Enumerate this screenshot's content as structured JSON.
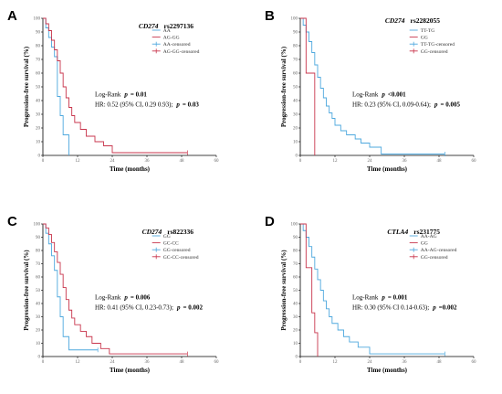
{
  "colors": {
    "group_a": "#4ea8de",
    "group_b": "#c8354c",
    "axis": "#000000",
    "tick_label": "#666666"
  },
  "chart_data": [
    {
      "type": "line",
      "panel": "A",
      "gene": "CD274",
      "snp": "rs2297136",
      "xlabel": "Time (months)",
      "ylabel": "Progression-free survival (%)",
      "xlim": [
        0,
        60
      ],
      "ylim": [
        0,
        100
      ],
      "xticks": [
        0,
        12,
        24,
        36,
        48,
        60
      ],
      "yticks": [
        0,
        10,
        20,
        30,
        40,
        50,
        60,
        70,
        80,
        90,
        100
      ],
      "grid": false,
      "legend": "top-right",
      "legend_entries": [
        "AA",
        "AG-GG",
        "AA-censored",
        "AG-GG-censored"
      ],
      "stats": {
        "logrank_label": "Log-Rank",
        "p_label": "p",
        "logrank_p": "= 0.01",
        "hr_text": "HR: 0.52 (95% CI, 0.29 0.93);",
        "hr_p": "= 0.03"
      },
      "series": [
        {
          "name": "AA",
          "color": "group_a",
          "x": [
            0,
            1,
            2,
            3,
            4,
            5,
            6,
            7,
            9
          ],
          "y": [
            100,
            93,
            86,
            79,
            72,
            43,
            29,
            15,
            0
          ],
          "censored": []
        },
        {
          "name": "AG-GG",
          "color": "group_b",
          "x": [
            0,
            1,
            2,
            3,
            4,
            5,
            6,
            7,
            8,
            9,
            10,
            11,
            13,
            15,
            18,
            21,
            24,
            50
          ],
          "y": [
            100,
            96,
            91,
            84,
            77,
            69,
            60,
            50,
            42,
            35,
            29,
            24,
            19,
            14,
            10,
            7,
            2,
            2
          ],
          "censored": [
            [
              50,
              2
            ]
          ]
        }
      ]
    },
    {
      "type": "line",
      "panel": "B",
      "gene": "CD274",
      "snp": "rs2282055",
      "xlabel": "Time (months)",
      "ylabel": "Progression-free survival (%)",
      "xlim": [
        0,
        60
      ],
      "ylim": [
        0,
        100
      ],
      "xticks": [
        0,
        12,
        24,
        36,
        48,
        60
      ],
      "yticks": [
        0,
        10,
        20,
        30,
        40,
        50,
        60,
        70,
        80,
        90,
        100
      ],
      "grid": false,
      "legend": "top-right",
      "legend_entries": [
        "TT-TG",
        "GG",
        "TT-TG-censored",
        "GG-censored"
      ],
      "stats": {
        "logrank_label": "Log-Rank",
        "p_label": "p",
        "logrank_p": "<0.001",
        "hr_text": "HR: 0.23 (95% CI, 0.09-0.64);",
        "hr_p": "= 0.005"
      },
      "series": [
        {
          "name": "TT-TG",
          "color": "group_a",
          "x": [
            0,
            1,
            2,
            3,
            4,
            5,
            6,
            7,
            8,
            9,
            10,
            11,
            12,
            14,
            16,
            19,
            21,
            24,
            28,
            50
          ],
          "y": [
            100,
            95,
            90,
            83,
            75,
            66,
            57,
            49,
            42,
            36,
            31,
            27,
            22,
            18,
            15,
            12,
            9,
            6,
            1,
            1
          ],
          "censored": [
            [
              50,
              1
            ]
          ]
        },
        {
          "name": "GG",
          "color": "group_b",
          "x": [
            0,
            2,
            5,
            5
          ],
          "y": [
            100,
            60,
            20,
            0
          ],
          "censored": []
        }
      ]
    },
    {
      "type": "line",
      "panel": "C",
      "gene": "CD274",
      "snp": "rs822336",
      "xlabel": "Time (months)",
      "ylabel": "Progression-free survival (%)",
      "xlim": [
        0,
        60
      ],
      "ylim": [
        0,
        100
      ],
      "xticks": [
        0,
        12,
        24,
        36,
        48,
        60
      ],
      "yticks": [
        0,
        10,
        20,
        30,
        40,
        50,
        60,
        70,
        80,
        90,
        100
      ],
      "grid": false,
      "legend": "top-right",
      "legend_entries": [
        "GG",
        "GC-CC",
        "GG-censored",
        "GC-CC-censored"
      ],
      "stats": {
        "logrank_label": "Log-Rank",
        "p_label": "p",
        "logrank_p": "= 0.006",
        "hr_text": "HR: 0.41 (95% CI, 0.23-0.73);",
        "hr_p": "= 0.002"
      },
      "series": [
        {
          "name": "GG",
          "color": "group_a",
          "x": [
            0,
            1,
            2,
            3,
            4,
            5,
            6,
            7,
            9,
            19
          ],
          "y": [
            100,
            93,
            85,
            76,
            65,
            45,
            30,
            15,
            5,
            5
          ],
          "censored": [
            [
              19,
              5
            ]
          ]
        },
        {
          "name": "GC-CC",
          "color": "group_b",
          "x": [
            0,
            1,
            2,
            3,
            4,
            5,
            6,
            7,
            8,
            9,
            10,
            11,
            13,
            15,
            17,
            20,
            23,
            50
          ],
          "y": [
            100,
            97,
            92,
            86,
            79,
            71,
            62,
            52,
            43,
            35,
            29,
            24,
            19,
            15,
            10,
            6,
            2,
            2
          ],
          "censored": [
            [
              50,
              2
            ]
          ]
        }
      ]
    },
    {
      "type": "line",
      "panel": "D",
      "gene": "CTLA4",
      "snp": "rs231775",
      "xlabel": "Time (months)",
      "ylabel": "Progression-free survival (%)",
      "xlim": [
        0,
        60
      ],
      "ylim": [
        0,
        100
      ],
      "xticks": [
        0,
        12,
        24,
        36,
        48,
        60
      ],
      "yticks": [
        0,
        10,
        20,
        30,
        40,
        50,
        60,
        70,
        80,
        90,
        100
      ],
      "grid": false,
      "legend": "top-right",
      "legend_entries": [
        "AA-AG",
        "GG",
        "AA-AG-censored",
        "GG-censored"
      ],
      "stats": {
        "logrank_label": "Log-Rank",
        "p_label": "p",
        "logrank_p": "= 0.001",
        "hr_text": "HR: 0.30 (95% CI 0.14-0.63);",
        "hr_p": "=0.002"
      },
      "series": [
        {
          "name": "AA-AG",
          "color": "group_a",
          "x": [
            0,
            1,
            2,
            3,
            4,
            5,
            6,
            7,
            8,
            9,
            10,
            11,
            13,
            15,
            17,
            20,
            24,
            50
          ],
          "y": [
            100,
            95,
            90,
            83,
            75,
            66,
            58,
            50,
            42,
            36,
            30,
            25,
            20,
            15,
            11,
            7,
            2,
            2
          ],
          "censored": [
            [
              50,
              2
            ]
          ]
        },
        {
          "name": "GG",
          "color": "group_b",
          "x": [
            0,
            2,
            4,
            5,
            6,
            6
          ],
          "y": [
            100,
            67,
            33,
            18,
            10,
            0
          ],
          "censored": []
        }
      ]
    }
  ]
}
